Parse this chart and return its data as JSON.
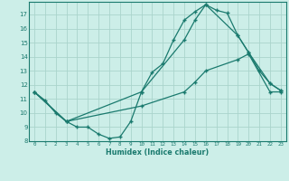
{
  "xlabel": "Humidex (Indice chaleur)",
  "bg_color": "#cceee8",
  "line_color": "#1a7a6e",
  "grid_color": "#aad4cc",
  "xlim": [
    -0.5,
    23.5
  ],
  "ylim": [
    8,
    17.9
  ],
  "xticks": [
    0,
    1,
    2,
    3,
    4,
    5,
    6,
    7,
    8,
    9,
    10,
    11,
    12,
    13,
    14,
    15,
    16,
    17,
    18,
    19,
    20,
    21,
    22,
    23
  ],
  "yticks": [
    8,
    9,
    10,
    11,
    12,
    13,
    14,
    15,
    16,
    17
  ],
  "curve1_x": [
    0,
    1,
    2,
    3,
    4,
    5,
    6,
    7,
    8,
    9,
    10,
    11,
    12,
    13,
    14,
    15,
    16,
    17,
    18,
    19,
    20,
    21,
    22,
    23
  ],
  "curve1_y": [
    11.5,
    10.9,
    10.0,
    9.4,
    9.0,
    9.0,
    8.5,
    8.2,
    8.3,
    9.4,
    11.5,
    12.9,
    13.5,
    15.2,
    16.6,
    17.2,
    17.7,
    17.3,
    17.1,
    15.5,
    14.3,
    13.0,
    12.1,
    11.6
  ],
  "curve2_x": [
    0,
    3,
    10,
    14,
    15,
    16,
    19,
    20,
    22,
    23
  ],
  "curve2_y": [
    11.5,
    9.4,
    11.5,
    15.2,
    16.6,
    17.7,
    15.5,
    14.3,
    12.1,
    11.6
  ],
  "curve3_x": [
    0,
    3,
    10,
    14,
    15,
    16,
    19,
    20,
    22,
    23
  ],
  "curve3_y": [
    11.5,
    9.4,
    10.5,
    11.5,
    12.2,
    13.0,
    13.8,
    14.2,
    11.5,
    11.5
  ]
}
